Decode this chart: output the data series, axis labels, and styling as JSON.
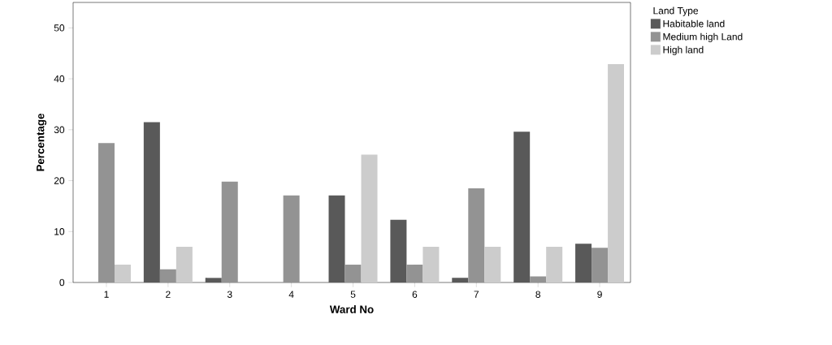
{
  "chart_data": {
    "type": "bar",
    "xlabel": "Ward No",
    "ylabel": "Percentage",
    "legend_title": "Land Type",
    "categories": [
      "1",
      "2",
      "3",
      "4",
      "5",
      "6",
      "7",
      "8",
      "9"
    ],
    "series": [
      {
        "name": "Habitable land",
        "color": "#595959",
        "values": [
          0,
          31.5,
          0.9,
          0,
          17.1,
          12.3,
          0.9,
          29.6,
          7.6
        ]
      },
      {
        "name": "Medium high  Land",
        "color": "#939393",
        "values": [
          27.4,
          2.6,
          19.8,
          17.1,
          3.5,
          3.5,
          18.5,
          1.2,
          6.8
        ]
      },
      {
        "name": "High land",
        "color": "#cccccc",
        "values": [
          3.5,
          7.0,
          0,
          0,
          25.1,
          7.0,
          7.0,
          7.0,
          42.9
        ]
      }
    ],
    "ylim": [
      0,
      55
    ],
    "yticks": [
      0,
      10,
      20,
      30,
      40,
      50
    ],
    "legend": "top right",
    "grid": false
  }
}
